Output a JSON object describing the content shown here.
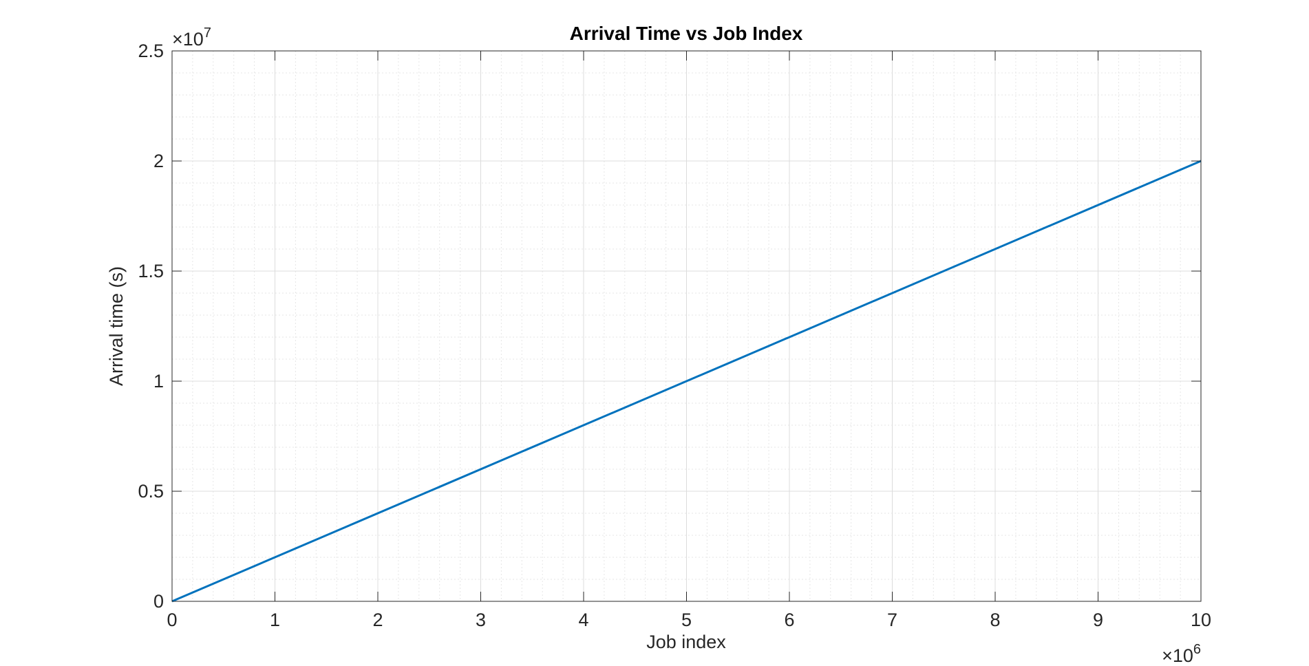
{
  "chart_data": {
    "type": "line",
    "title": "Arrival Time vs Job Index",
    "xlabel": "Job index",
    "ylabel": "Arrival time (s)",
    "xlim": [
      0,
      10000000
    ],
    "ylim": [
      0,
      25000000
    ],
    "x_ticks": [
      0,
      1,
      2,
      3,
      4,
      5,
      6,
      7,
      8,
      9,
      10
    ],
    "x_tick_labels": [
      "0",
      "1",
      "2",
      "3",
      "4",
      "5",
      "6",
      "7",
      "8",
      "9",
      "10"
    ],
    "y_ticks": [
      0,
      0.5,
      1,
      1.5,
      2,
      2.5
    ],
    "y_tick_labels": [
      "0",
      "0.5",
      "1",
      "1.5",
      "2",
      "2.5"
    ],
    "x_multiplier": {
      "base": "×10",
      "exponent": "6"
    },
    "y_multiplier": {
      "base": "×10",
      "exponent": "7"
    },
    "grid": true,
    "minor_grid": true,
    "series": [
      {
        "color": "#0072BD",
        "x": [
          0,
          10000000
        ],
        "y": [
          0,
          20000000
        ]
      }
    ]
  }
}
